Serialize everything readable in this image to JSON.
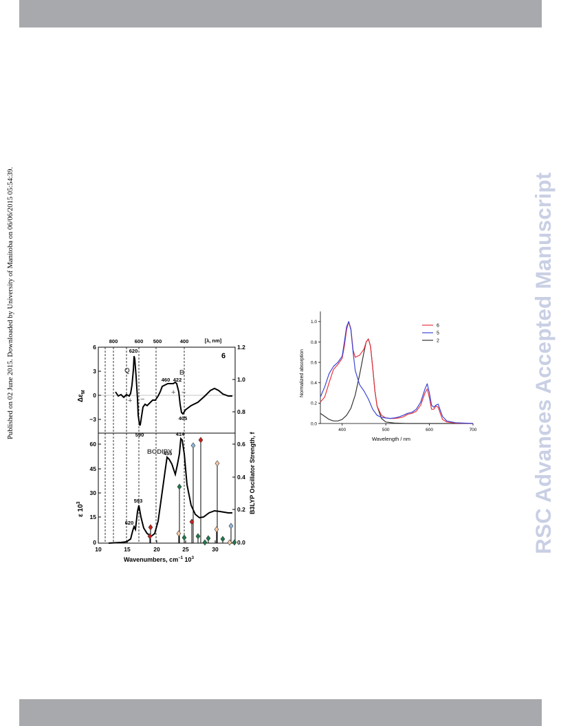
{
  "page": {
    "published_note": "Published on 02 June 2015. Downloaded by University of Manitoba on 06/06/2015 05:54:39.",
    "watermark": "RSC Advances Accepted Manuscript"
  },
  "left_figure": {
    "compound_label": "6",
    "top_axis_labels": [
      "800",
      "600",
      "500",
      "400",
      "[λ, nm]"
    ],
    "mcd_ylabel": "Δε",
    "mcd_ylabel_sub": "M",
    "mcd_ticks": [
      "6",
      "3",
      "0",
      "−3"
    ],
    "abs_ylabel": "ε 10",
    "abs_ylabel_sup": "3",
    "abs_ticks": [
      "60",
      "45",
      "30",
      "15",
      "0"
    ],
    "right_axis_label": "B3LYP Oscillator Strength, f",
    "right_ticks": [
      "1.2",
      "1.0",
      "0.8",
      "0.6",
      "0.4",
      "0.2",
      "0.0"
    ],
    "x_ticks": [
      "10",
      "15",
      "20",
      "25",
      "30"
    ],
    "xlabel": "Wavenumbers, cm",
    "xlabel_sup": "−1",
    "xlabel_tail": " 10",
    "xlabel_tail_sup": "3",
    "mcd_annotations": [
      "620",
      "590",
      "460",
      "422",
      "405"
    ],
    "band_letters": [
      "Q",
      "B"
    ],
    "signs": [
      "+",
      "−",
      "+",
      "−"
    ],
    "abs_annotations": [
      "593",
      "620",
      "455",
      "414"
    ],
    "bodipy_label": "BODIPY"
  },
  "chart_data": {
    "type": "line",
    "title": "",
    "xlabel": "Wavelength / nm",
    "ylabel": "Normalized absorption",
    "xlim": [
      350,
      700
    ],
    "ylim": [
      0,
      1.1
    ],
    "x_ticks": [
      "400",
      "500",
      "600",
      "700"
    ],
    "y_ticks": [
      "0.0",
      "0.2",
      "0.4",
      "0.6",
      "0.8",
      "1.0"
    ],
    "legend_position": "top-right",
    "series": [
      {
        "name": "6",
        "color": "#e8323c",
        "points": [
          [
            350,
            0.21
          ],
          [
            360,
            0.26
          ],
          [
            370,
            0.4
          ],
          [
            380,
            0.53
          ],
          [
            390,
            0.58
          ],
          [
            400,
            0.64
          ],
          [
            405,
            0.76
          ],
          [
            410,
            0.92
          ],
          [
            415,
            1.0
          ],
          [
            420,
            0.93
          ],
          [
            425,
            0.72
          ],
          [
            430,
            0.65
          ],
          [
            440,
            0.67
          ],
          [
            450,
            0.73
          ],
          [
            455,
            0.8
          ],
          [
            460,
            0.83
          ],
          [
            465,
            0.76
          ],
          [
            470,
            0.55
          ],
          [
            475,
            0.32
          ],
          [
            480,
            0.17
          ],
          [
            490,
            0.08
          ],
          [
            500,
            0.055
          ],
          [
            510,
            0.05
          ],
          [
            520,
            0.05
          ],
          [
            530,
            0.055
          ],
          [
            540,
            0.065
          ],
          [
            550,
            0.09
          ],
          [
            560,
            0.1
          ],
          [
            570,
            0.12
          ],
          [
            580,
            0.18
          ],
          [
            590,
            0.3
          ],
          [
            595,
            0.34
          ],
          [
            600,
            0.25
          ],
          [
            605,
            0.14
          ],
          [
            610,
            0.14
          ],
          [
            615,
            0.17
          ],
          [
            620,
            0.16
          ],
          [
            625,
            0.1
          ],
          [
            630,
            0.04
          ],
          [
            640,
            0.015
          ],
          [
            660,
            0.004
          ],
          [
            700,
            0
          ]
        ]
      },
      {
        "name": "5",
        "color": "#3a45d6",
        "points": [
          [
            350,
            0.26
          ],
          [
            360,
            0.36
          ],
          [
            370,
            0.49
          ],
          [
            380,
            0.56
          ],
          [
            390,
            0.6
          ],
          [
            400,
            0.66
          ],
          [
            405,
            0.8
          ],
          [
            410,
            0.95
          ],
          [
            415,
            1.0
          ],
          [
            420,
            0.92
          ],
          [
            425,
            0.7
          ],
          [
            430,
            0.52
          ],
          [
            440,
            0.38
          ],
          [
            450,
            0.32
          ],
          [
            460,
            0.24
          ],
          [
            470,
            0.14
          ],
          [
            480,
            0.08
          ],
          [
            490,
            0.06
          ],
          [
            500,
            0.055
          ],
          [
            510,
            0.05
          ],
          [
            520,
            0.055
          ],
          [
            530,
            0.065
          ],
          [
            540,
            0.08
          ],
          [
            550,
            0.1
          ],
          [
            560,
            0.11
          ],
          [
            570,
            0.14
          ],
          [
            580,
            0.21
          ],
          [
            590,
            0.34
          ],
          [
            595,
            0.39
          ],
          [
            600,
            0.3
          ],
          [
            605,
            0.18
          ],
          [
            610,
            0.16
          ],
          [
            615,
            0.18
          ],
          [
            620,
            0.19
          ],
          [
            625,
            0.13
          ],
          [
            630,
            0.07
          ],
          [
            640,
            0.025
          ],
          [
            660,
            0.008
          ],
          [
            700,
            0
          ]
        ]
      },
      {
        "name": "2",
        "color": "#333333",
        "points": [
          [
            350,
            0.1
          ],
          [
            360,
            0.07
          ],
          [
            370,
            0.04
          ],
          [
            380,
            0.025
          ],
          [
            390,
            0.025
          ],
          [
            400,
            0.04
          ],
          [
            410,
            0.08
          ],
          [
            420,
            0.15
          ],
          [
            430,
            0.28
          ],
          [
            440,
            0.48
          ],
          [
            450,
            0.7
          ],
          [
            455,
            0.8
          ],
          [
            460,
            0.83
          ],
          [
            465,
            0.76
          ],
          [
            470,
            0.55
          ],
          [
            475,
            0.32
          ],
          [
            480,
            0.17
          ],
          [
            490,
            0.05
          ],
          [
            500,
            0.015
          ],
          [
            520,
            0.004
          ],
          [
            550,
            0
          ],
          [
            700,
            0
          ]
        ]
      }
    ]
  }
}
